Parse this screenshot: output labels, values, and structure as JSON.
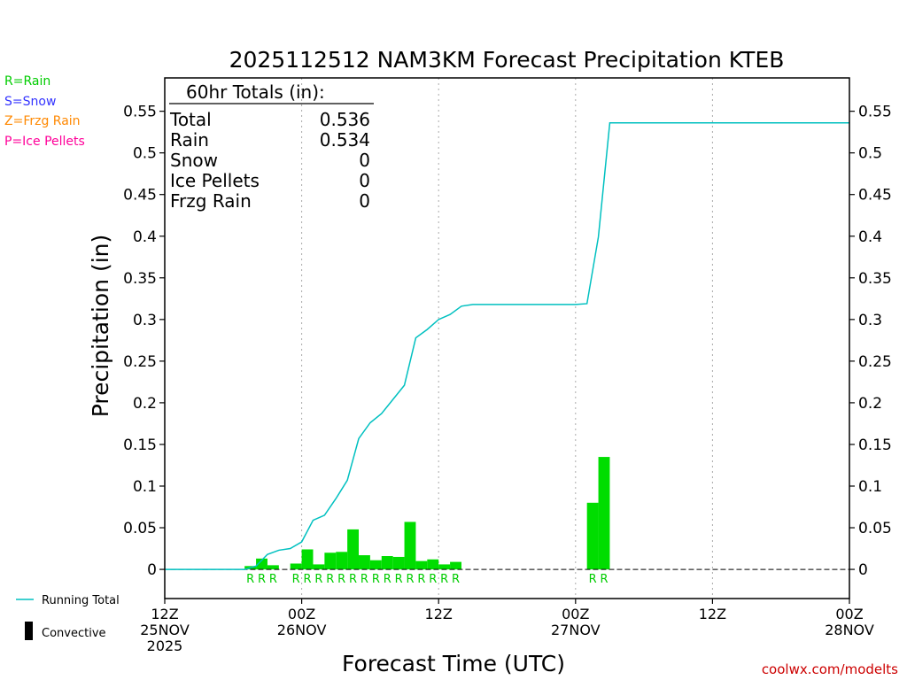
{
  "title": "2025112512 NAM3KM Forecast Precipitation KTEB",
  "ylabel": "Precipitation (in)",
  "xlabel": "Forecast Time (UTC)",
  "credit": "coolwx.com/modelts",
  "legend_types": [
    {
      "label": "R=Rain",
      "color": "#00cc00"
    },
    {
      "label": "S=Snow",
      "color": "#3333ff"
    },
    {
      "label": "Z=Frzg Rain",
      "color": "#ff8800"
    },
    {
      "label": "P=Ice Pellets",
      "color": "#ff0099"
    }
  ],
  "legend_bottom": {
    "running_total": "Running Total",
    "convective": "Convective"
  },
  "totals_box": {
    "header": "60hr Totals (in):",
    "rows": [
      {
        "label": "Total",
        "value": "0.536"
      },
      {
        "label": "Rain",
        "value": "0.534"
      },
      {
        "label": "Snow",
        "value": "0"
      },
      {
        "label": "Ice Pellets",
        "value": "0"
      },
      {
        "label": "Frzg Rain",
        "value": "0"
      }
    ]
  },
  "colors": {
    "bars": "#00dd00",
    "running_total": "#00c0c0",
    "grid": "#aaaaaa"
  },
  "chart_data": {
    "type": "bar",
    "x_range_hours": [
      0,
      60
    ],
    "ylim": [
      -0.035,
      0.59
    ],
    "y_ticks": [
      0,
      0.05,
      0.1,
      0.15,
      0.2,
      0.25,
      0.3,
      0.35,
      0.4,
      0.45,
      0.5,
      0.55
    ],
    "y_tick_labels": [
      "0",
      "0.05",
      "0.1",
      "0.15",
      "0.2",
      "0.25",
      "0.3",
      "0.35",
      "0.4",
      "0.45",
      "0.5",
      "0.55"
    ],
    "x_ticks": [
      {
        "hour": 0,
        "lines": [
          "12Z",
          "25NOV",
          "2025"
        ]
      },
      {
        "hour": 12,
        "lines": [
          "00Z",
          "26NOV"
        ]
      },
      {
        "hour": 24,
        "lines": [
          "12Z"
        ]
      },
      {
        "hour": 36,
        "lines": [
          "00Z",
          "27NOV"
        ]
      },
      {
        "hour": 48,
        "lines": [
          "12Z"
        ]
      },
      {
        "hour": 60,
        "lines": [
          "00Z",
          "28NOV"
        ]
      }
    ],
    "series": [
      {
        "name": "Rain",
        "kind": "hourly_bars",
        "hours": [
          8,
          9,
          10,
          12,
          13,
          14,
          15,
          16,
          17,
          18,
          19,
          20,
          21,
          22,
          23,
          24,
          25,
          26,
          38,
          39
        ],
        "values": [
          0.004,
          0.013,
          0.005,
          0.007,
          0.024,
          0.006,
          0.02,
          0.021,
          0.048,
          0.017,
          0.011,
          0.016,
          0.015,
          0.057,
          0.01,
          0.012,
          0.006,
          0.009,
          0.08,
          0.135
        ],
        "ptype": [
          "R",
          "R",
          "R",
          "R",
          "R",
          "R",
          "R",
          "R",
          "R",
          "R",
          "R",
          "R",
          "R",
          "R",
          "R",
          "R",
          "R",
          "R",
          "R",
          "R"
        ]
      },
      {
        "name": "Running Total",
        "kind": "line",
        "hours": [
          0,
          7,
          8,
          9,
          10,
          11,
          12,
          13,
          14,
          15,
          16,
          17,
          18,
          19,
          20,
          21,
          22,
          23,
          24,
          25,
          26,
          27,
          28,
          36,
          37,
          38,
          39,
          60
        ],
        "values": [
          0,
          0,
          0.004,
          0.018,
          0.023,
          0.025,
          0.033,
          0.059,
          0.065,
          0.085,
          0.107,
          0.157,
          0.176,
          0.187,
          0.204,
          0.221,
          0.278,
          0.288,
          0.3,
          0.306,
          0.316,
          0.318,
          0.318,
          0.318,
          0.319,
          0.399,
          0.536,
          0.536
        ]
      }
    ]
  }
}
